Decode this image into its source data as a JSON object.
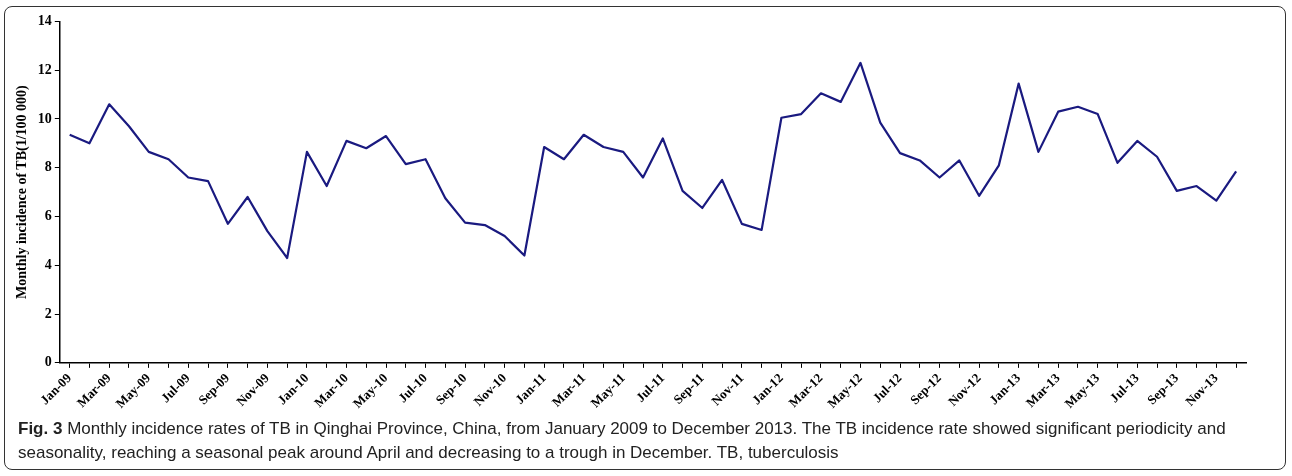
{
  "chart_data": {
    "type": "line",
    "ylabel": "Monthly incidence of TB(1/100 000)",
    "categories": [
      "Jan-09",
      null,
      "Mar-09",
      null,
      "May-09",
      null,
      "Jul-09",
      null,
      "Sep-09",
      null,
      "Nov-09",
      null,
      "Jan-10",
      null,
      "Mar-10",
      null,
      "May-10",
      null,
      "Jul-10",
      null,
      "Sep-10",
      null,
      "Nov-10",
      null,
      "Jan-11",
      null,
      "Mar-11",
      null,
      "May-11",
      null,
      "Jul-11",
      null,
      "Sep-11",
      null,
      "Nov-11",
      null,
      "Jan-12",
      null,
      "Mar-12",
      null,
      "May-12",
      null,
      "Jul-12",
      null,
      "Sep-12",
      null,
      "Nov-12",
      null,
      "Jan-13",
      null,
      "Mar-13",
      null,
      "May-13",
      null,
      "Jul-13",
      null,
      "Sep-13",
      null,
      "Nov-13",
      null
    ],
    "series": [
      {
        "color": "#1a1a80",
        "values": [
          9.35,
          9.0,
          10.6,
          9.7,
          8.65,
          8.35,
          7.6,
          7.45,
          5.7,
          6.8,
          5.4,
          4.3,
          8.65,
          7.25,
          9.1,
          8.8,
          9.3,
          8.15,
          8.35,
          6.75,
          5.75,
          5.65,
          5.2,
          4.4,
          8.85,
          8.35,
          9.35,
          8.85,
          8.65,
          7.6,
          9.2,
          7.05,
          6.35,
          7.5,
          5.7,
          5.45,
          10.05,
          10.2,
          11.05,
          10.7,
          12.3,
          9.85,
          8.6,
          8.3,
          7.6,
          8.3,
          6.85,
          8.1,
          11.45,
          8.65,
          10.3,
          10.5,
          10.2,
          8.2,
          9.1,
          8.45,
          7.05,
          7.25,
          6.65,
          7.85
        ]
      }
    ],
    "ylim": [
      0,
      14
    ],
    "yticks": [
      0,
      2,
      4,
      6,
      8,
      10,
      12,
      14
    ],
    "grid": false,
    "legend": false,
    "marker": "none",
    "line_style": "solid",
    "annotations": [
      "Fig. 3 Monthly incidence rates of TB in Qinghai Province, China, from January 2009 to December 2013. The TB incidence rate showed significant periodicity and seasonality, reaching a seasonal peak around April and decreasing to a trough in December. TB, tuberculosis"
    ]
  }
}
